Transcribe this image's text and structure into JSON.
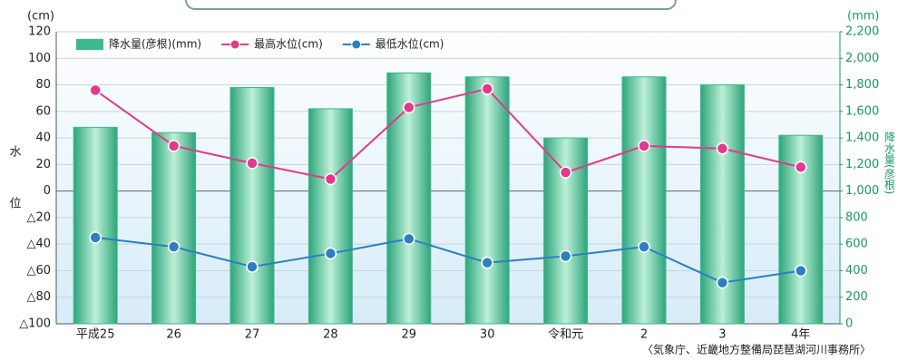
{
  "chart_data": {
    "type": "bar_line",
    "y_unit": "(cm)",
    "y2_unit": "(mm)",
    "y_label": "水位",
    "y2_label": "降水量(彦根)",
    "source": "〈気象庁、近畿地方整備局琵琶湖河川事務所〉",
    "categories": [
      "平成25",
      "26",
      "27",
      "28",
      "29",
      "30",
      "令和元",
      "2",
      "3",
      "4年"
    ],
    "ylim": [
      -100,
      120
    ],
    "yticks": [
      {
        "value": -100,
        "label": "△100"
      },
      {
        "value": -80,
        "label": "△80"
      },
      {
        "value": -60,
        "label": "△60"
      },
      {
        "value": -40,
        "label": "△40"
      },
      {
        "value": -20,
        "label": "△20"
      },
      0,
      20,
      40,
      60,
      80,
      100,
      120
    ],
    "y2lim": [
      0,
      2200
    ],
    "y2ticks": [
      0,
      200,
      400,
      600,
      800,
      {
        "value": 1000,
        "label": "1,000"
      },
      {
        "value": 1200,
        "label": "1,200"
      },
      {
        "value": 1400,
        "label": "1,400"
      },
      {
        "value": 1600,
        "label": "1,600"
      },
      {
        "value": 1800,
        "label": "1,800"
      },
      {
        "value": 2000,
        "label": "2,000"
      },
      {
        "value": 2200,
        "label": "2,200"
      }
    ],
    "grid": true,
    "series": [
      {
        "name": "降水量(彦根)(mm)",
        "type": "bar",
        "axis": "y2",
        "color": "#3dba8c",
        "values": [
          1480,
          1440,
          1780,
          1620,
          1890,
          1860,
          1400,
          1860,
          1800,
          1420
        ]
      },
      {
        "name": "最高水位(cm)",
        "type": "line",
        "color": "#e2398c",
        "values": [
          76,
          34,
          21,
          9,
          63,
          77,
          14,
          34,
          32,
          18
        ]
      },
      {
        "name": "最低水位(cm)",
        "type": "line",
        "color": "#2b7fc2",
        "values": [
          -35,
          -42,
          -57,
          -47,
          -36,
          -54,
          -49,
          -42,
          -69,
          -60
        ]
      }
    ]
  }
}
